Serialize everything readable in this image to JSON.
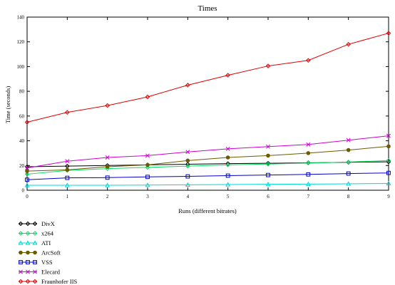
{
  "chart_data": {
    "type": "line",
    "title": "Times",
    "xlabel": "Runs (different bitrates)",
    "ylabel": "Time (seconds)",
    "x": [
      0,
      1,
      2,
      3,
      4,
      5,
      6,
      7,
      8,
      9
    ],
    "xlim": [
      0,
      9
    ],
    "ylim": [
      0,
      140
    ],
    "xticks": [
      0,
      1,
      2,
      3,
      4,
      5,
      6,
      7,
      8,
      9
    ],
    "yticks": [
      0,
      20,
      40,
      60,
      80,
      100,
      120,
      140
    ],
    "grid": false,
    "legend_position": "below-left",
    "series": [
      {
        "name": "DivX",
        "color": "#000000",
        "marker": "diamond",
        "values": [
          19,
          19.5,
          20,
          20.5,
          21,
          21.5,
          21.8,
          22.2,
          22.6,
          23
        ]
      },
      {
        "name": "x264",
        "color": "#00e060",
        "marker": "diamond",
        "values": [
          13,
          16,
          17.5,
          18.5,
          19.5,
          20.5,
          21.2,
          22,
          22.8,
          24
        ]
      },
      {
        "name": "ATI",
        "color": "#00d8d8",
        "marker": "triangle",
        "values": [
          4,
          4,
          4,
          4.2,
          4.4,
          4.6,
          4.8,
          5,
          5.2,
          5.5
        ]
      },
      {
        "name": "ArcSoft",
        "color": "#6b5a00",
        "marker": "circle",
        "values": [
          15.5,
          16.5,
          19,
          20.5,
          24,
          26.5,
          28,
          30,
          32.5,
          35.5
        ]
      },
      {
        "name": "VSS",
        "color": "#0000c8",
        "marker": "square",
        "values": [
          8.5,
          10,
          10.2,
          10.8,
          11.2,
          11.8,
          12.3,
          12.8,
          13.5,
          14
        ]
      },
      {
        "name": "Elecard",
        "color": "#d000d0",
        "marker": "x",
        "values": [
          18,
          23.5,
          26.5,
          28,
          31,
          33.5,
          35.3,
          37,
          40.5,
          44
        ]
      },
      {
        "name": "Fraunhofer IIS",
        "color": "#e00000",
        "marker": "diamond",
        "values": [
          55,
          63,
          68.5,
          75.5,
          85,
          93,
          100.5,
          105,
          118,
          127
        ]
      }
    ]
  }
}
